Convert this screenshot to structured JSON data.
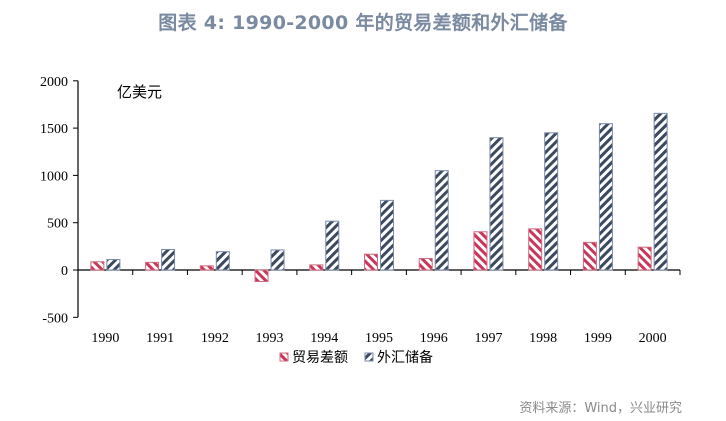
{
  "title": "图表 4:  1990-2000 年的贸易差额和外汇储备",
  "source": "资料来源：Wind，兴业研究",
  "unit_label": "亿美元",
  "legend": [
    {
      "label": "贸易差额",
      "color": "#c8375a",
      "pattern": "hatch-backslash"
    },
    {
      "label": "外汇储备",
      "color": "#3c4a60",
      "pattern": "hatch-slash"
    }
  ],
  "chart_data": {
    "type": "bar",
    "title": "1990-2000 年的贸易差额和外汇储备",
    "xlabel": "",
    "ylabel": "亿美元",
    "ylim": [
      -500,
      2000
    ],
    "yticks": [
      -500,
      0,
      500,
      1000,
      1500,
      2000
    ],
    "grid": false,
    "legend_position": "bottom",
    "categories": [
      "1990",
      "1991",
      "1992",
      "1993",
      "1994",
      "1995",
      "1996",
      "1997",
      "1998",
      "1999",
      "2000"
    ],
    "series": [
      {
        "name": "贸易差额",
        "values": [
          87,
          81,
          44,
          -122,
          54,
          167,
          122,
          404,
          435,
          292,
          241
        ]
      },
      {
        "name": "外汇储备",
        "values": [
          111,
          217,
          194,
          212,
          516,
          736,
          1050,
          1399,
          1450,
          1547,
          1656
        ]
      }
    ]
  }
}
